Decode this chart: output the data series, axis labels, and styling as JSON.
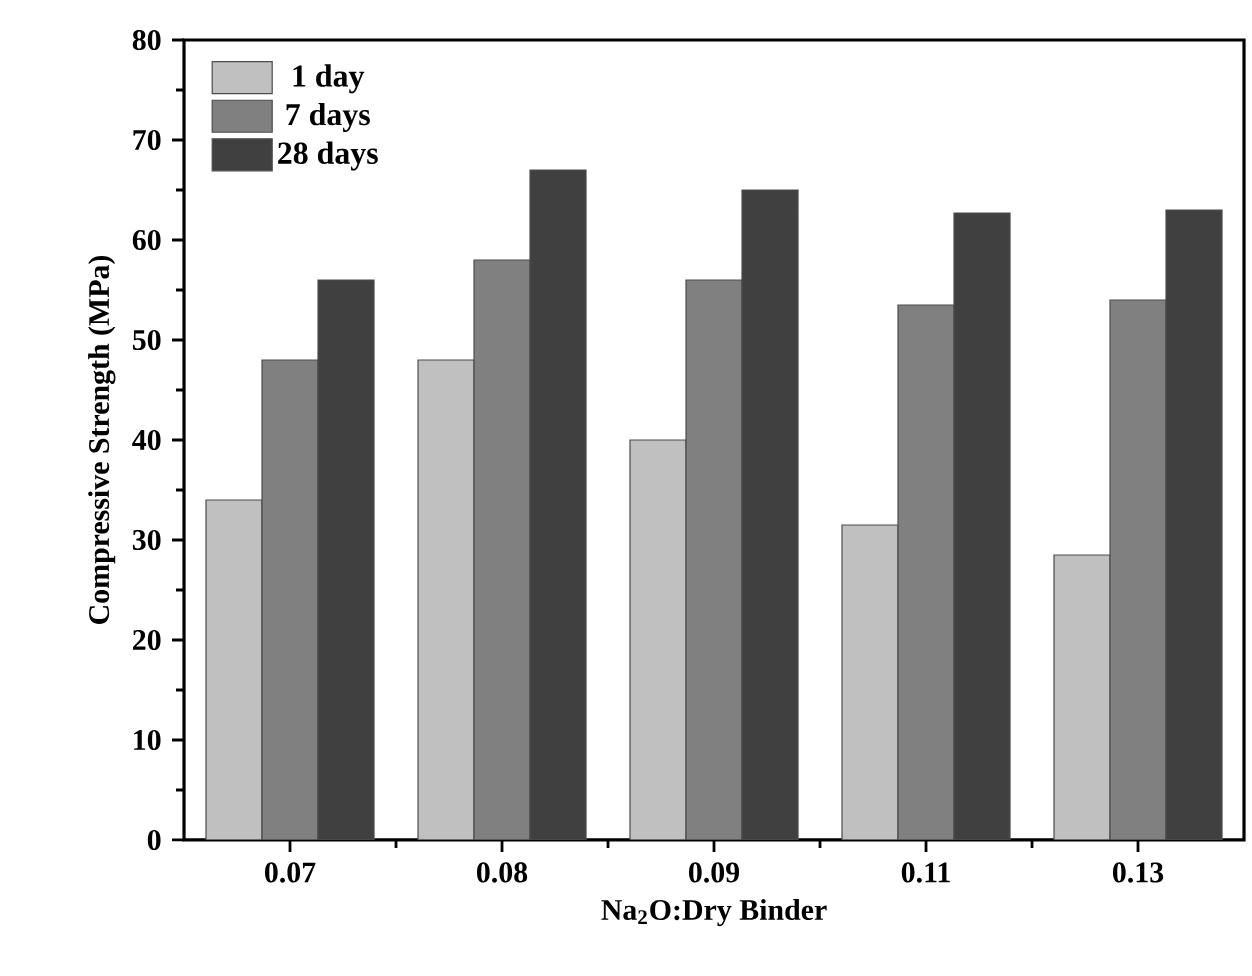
{
  "chart_data": {
    "type": "bar",
    "xlabel": "Na$_{2}$O:Dry Binder",
    "ylabel": "Compressive Strength (MPa)",
    "categories": [
      "0.07",
      "0.08",
      "0.09",
      "0.11",
      "0.13"
    ],
    "series": [
      {
        "name": "1 day",
        "color": "#c0c0c0",
        "values": [
          34,
          48,
          40,
          31.5,
          28.5
        ]
      },
      {
        "name": "7 days",
        "color": "#808080",
        "values": [
          48,
          58,
          56,
          53.5,
          54
        ]
      },
      {
        "name": "28 days",
        "color": "#404040",
        "values": [
          56,
          67,
          65,
          62.7,
          63
        ]
      }
    ],
    "ylim": [
      0,
      80
    ],
    "yticks": [
      0,
      10,
      20,
      30,
      40,
      50,
      60,
      70,
      80
    ],
    "grid": false,
    "legend": "top left"
  }
}
